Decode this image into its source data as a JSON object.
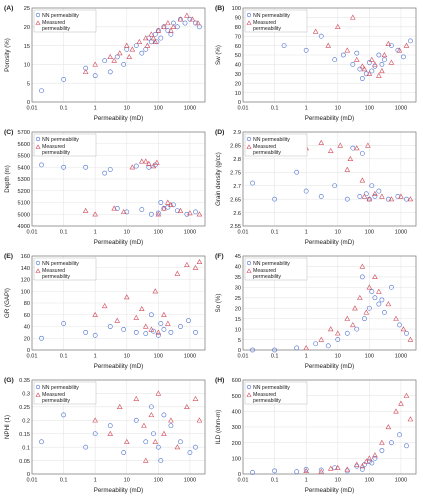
{
  "legend": {
    "nn": "NN permeability",
    "measured": "Measured permeability",
    "measured_line1": "Measured",
    "measured_line2": "permeability"
  },
  "colors": {
    "nn": "#4a6fd1",
    "measured": "#d24a5a",
    "axis": "#777777",
    "grid": "#e6e6e6",
    "text": "#222222"
  },
  "x_axis": {
    "label": "Permeability (mD)",
    "ticks": [
      "0.01",
      "0.1",
      "1",
      "10",
      "100",
      "1000"
    ],
    "tick_values": [
      0.01,
      0.1,
      1,
      10,
      100,
      1000
    ],
    "lim": [
      0.01,
      3000
    ],
    "scale": "log"
  },
  "chart_data": [
    {
      "panel": "(A)",
      "type": "scatter",
      "ylabel": "Porosity (%)",
      "ylim": [
        0,
        25
      ],
      "yticks": [
        0,
        5,
        10,
        15,
        20,
        25
      ],
      "legend_placement": "top-left",
      "grid": true,
      "series": [
        {
          "name": "NN permeability",
          "marker": "circle",
          "x": [
            0.02,
            0.1,
            0.5,
            2,
            5,
            10,
            20,
            30,
            50,
            60,
            80,
            100,
            120,
            150,
            200,
            300,
            400,
            500,
            700,
            1000,
            1500,
            2000,
            40,
            90,
            250,
            8,
            3,
            1
          ],
          "y": [
            3,
            6,
            9,
            11,
            12,
            14,
            15,
            13,
            17,
            16,
            18,
            19,
            17,
            20,
            19,
            21,
            20,
            22,
            21,
            22,
            21,
            20,
            14,
            16,
            18,
            10,
            8,
            7
          ]
        },
        {
          "name": "Measured permeability",
          "marker": "triangle",
          "x": [
            0.5,
            1,
            3,
            6,
            10,
            15,
            25,
            40,
            60,
            80,
            100,
            150,
            200,
            300,
            500,
            800,
            1200,
            1800,
            45,
            70,
            250,
            12,
            4
          ],
          "y": [
            8,
            10,
            12,
            13,
            15,
            14,
            16,
            17,
            18,
            16,
            19,
            20,
            21,
            20,
            22,
            23,
            22,
            21,
            15,
            17,
            19,
            12,
            11
          ]
        }
      ]
    },
    {
      "panel": "(B)",
      "type": "scatter",
      "ylabel": "Sw (%)",
      "ylim": [
        0,
        100
      ],
      "yticks": [
        0,
        10,
        20,
        30,
        40,
        50,
        60,
        70,
        80,
        90,
        100
      ],
      "legend_placement": "top-left",
      "grid": true,
      "series": [
        {
          "name": "NN permeability",
          "marker": "circle",
          "x": [
            0.02,
            0.2,
            1,
            3,
            8,
            15,
            30,
            50,
            80,
            100,
            150,
            200,
            300,
            500,
            800,
            1200,
            2000,
            60,
            120,
            40,
            250
          ],
          "y": [
            80,
            60,
            55,
            70,
            45,
            50,
            40,
            35,
            30,
            42,
            38,
            50,
            45,
            60,
            55,
            48,
            65,
            25,
            33,
            52,
            40
          ]
        },
        {
          "name": "Measured permeability",
          "marker": "triangle",
          "x": [
            2,
            5,
            10,
            20,
            40,
            70,
            100,
            150,
            200,
            300,
            500,
            900,
            1500,
            30,
            60,
            120,
            250,
            400
          ],
          "y": [
            75,
            60,
            80,
            55,
            45,
            35,
            30,
            40,
            28,
            50,
            42,
            55,
            60,
            90,
            38,
            45,
            33,
            62
          ]
        }
      ]
    },
    {
      "panel": "(C)",
      "type": "scatter",
      "ylabel": "Depth (m)",
      "ylim": [
        4900,
        5700
      ],
      "yticks": [
        4900,
        5000,
        5100,
        5200,
        5300,
        5400,
        5500,
        5600,
        5700
      ],
      "legend_placement": "top-left",
      "grid": true,
      "series": [
        {
          "name": "NN permeability",
          "marker": "circle",
          "x": [
            0.02,
            0.1,
            0.5,
            2,
            5,
            10,
            30,
            60,
            100,
            200,
            400,
            800,
            1500,
            50,
            80,
            120,
            3,
            20,
            150,
            300
          ],
          "y": [
            5420,
            5400,
            5400,
            5350,
            5050,
            5020,
            5040,
            5000,
            5010,
            5060,
            5030,
            5000,
            5020,
            5400,
            5420,
            5100,
            5380,
            5410,
            5050,
            5080
          ]
        },
        {
          "name": "Measured permeability",
          "marker": "triangle",
          "x": [
            0.5,
            1,
            4,
            8,
            15,
            30,
            50,
            70,
            100,
            150,
            250,
            500,
            1000,
            2000,
            40,
            90,
            200
          ],
          "y": [
            5030,
            5000,
            5050,
            5020,
            5400,
            5450,
            5430,
            5410,
            5000,
            5050,
            5080,
            5030,
            5010,
            5000,
            5450,
            5440,
            5100
          ]
        }
      ]
    },
    {
      "panel": "(D)",
      "type": "scatter",
      "ylabel": "Grain density (g/cc)",
      "ylim": [
        2.55,
        2.9
      ],
      "yticks": [
        2.55,
        2.6,
        2.65,
        2.7,
        2.75,
        2.8,
        2.85,
        2.9
      ],
      "legend_placement": "top-left",
      "grid": true,
      "series": [
        {
          "name": "NN permeability",
          "marker": "circle",
          "x": [
            0.02,
            0.1,
            0.5,
            1,
            3,
            8,
            20,
            50,
            80,
            100,
            150,
            200,
            400,
            800,
            1500,
            30,
            60,
            120
          ],
          "y": [
            2.71,
            2.65,
            2.75,
            2.68,
            2.66,
            2.7,
            2.65,
            2.66,
            2.67,
            2.65,
            2.66,
            2.68,
            2.65,
            2.66,
            2.65,
            2.84,
            2.82,
            2.7
          ]
        },
        {
          "name": "Measured permeability",
          "marker": "triangle",
          "x": [
            1,
            3,
            6,
            12,
            25,
            40,
            70,
            100,
            150,
            250,
            500,
            1000,
            2000,
            20,
            60,
            90
          ],
          "y": [
            2.84,
            2.86,
            2.83,
            2.85,
            2.8,
            2.84,
            2.66,
            2.65,
            2.67,
            2.66,
            2.65,
            2.66,
            2.65,
            2.76,
            2.72,
            2.85
          ]
        }
      ]
    },
    {
      "panel": "(E)",
      "type": "scatter",
      "ylabel": "GR (GAPI)",
      "ylim": [
        0,
        160
      ],
      "yticks": [
        0,
        20,
        40,
        60,
        80,
        100,
        120,
        140,
        160
      ],
      "legend_placement": "top-left",
      "grid": true,
      "series": [
        {
          "name": "NN permeability",
          "marker": "circle",
          "x": [
            0.02,
            0.1,
            0.5,
            1,
            3,
            8,
            20,
            40,
            70,
            100,
            150,
            250,
            500,
            900,
            1500,
            60,
            120
          ],
          "y": [
            20,
            45,
            30,
            25,
            40,
            35,
            30,
            28,
            32,
            25,
            35,
            30,
            40,
            50,
            30,
            60,
            45
          ]
        },
        {
          "name": "Measured permeability",
          "marker": "triangle",
          "x": [
            1,
            2,
            5,
            10,
            20,
            40,
            60,
            100,
            150,
            200,
            400,
            800,
            1500,
            2000,
            30,
            80
          ],
          "y": [
            60,
            75,
            50,
            90,
            55,
            40,
            35,
            30,
            60,
            45,
            130,
            145,
            140,
            150,
            70,
            100
          ]
        }
      ]
    },
    {
      "panel": "(F)",
      "type": "scatter",
      "ylabel": "So (%)",
      "ylim": [
        0,
        45
      ],
      "yticks": [
        0,
        5,
        10,
        15,
        20,
        25,
        30,
        35,
        40,
        45
      ],
      "legend_placement": "top-left",
      "grid": true,
      "series": [
        {
          "name": "NN permeability",
          "marker": "circle",
          "x": [
            0.02,
            0.1,
            0.5,
            2,
            5,
            10,
            20,
            40,
            70,
            100,
            150,
            200,
            300,
            500,
            900,
            1500,
            60,
            120,
            250
          ],
          "y": [
            0,
            0,
            1,
            3,
            2,
            5,
            8,
            10,
            15,
            20,
            25,
            22,
            18,
            30,
            12,
            8,
            35,
            28,
            24
          ]
        },
        {
          "name": "Measured permeability",
          "marker": "triangle",
          "x": [
            1,
            3,
            6,
            10,
            20,
            35,
            50,
            80,
            100,
            150,
            200,
            400,
            700,
            1200,
            2000,
            30,
            60
          ],
          "y": [
            1,
            5,
            10,
            8,
            15,
            20,
            25,
            18,
            30,
            35,
            28,
            22,
            15,
            10,
            5,
            12,
            40
          ]
        }
      ]
    },
    {
      "panel": "(G)",
      "type": "scatter",
      "ylabel": "NPHI (1)",
      "ylim": [
        0,
        0.35
      ],
      "yticks": [
        0,
        0.05,
        0.1,
        0.15,
        0.2,
        0.25,
        0.3,
        0.35
      ],
      "legend_placement": "top-left",
      "grid": true,
      "series": [
        {
          "name": "NN permeability",
          "marker": "circle",
          "x": [
            0.02,
            0.1,
            0.5,
            1,
            3,
            8,
            20,
            40,
            70,
            100,
            150,
            250,
            500,
            1000,
            1500,
            60,
            120
          ],
          "y": [
            0.12,
            0.22,
            0.1,
            0.15,
            0.18,
            0.08,
            0.2,
            0.12,
            0.15,
            0.1,
            0.22,
            0.18,
            0.12,
            0.08,
            0.1,
            0.25,
            0.05
          ]
        },
        {
          "name": "Measured permeability",
          "marker": "triangle",
          "x": [
            1,
            3,
            6,
            10,
            20,
            35,
            60,
            100,
            150,
            250,
            400,
            800,
            1500,
            2000,
            40,
            80
          ],
          "y": [
            0.2,
            0.15,
            0.25,
            0.12,
            0.28,
            0.18,
            0.22,
            0.3,
            0.15,
            0.2,
            0.1,
            0.25,
            0.28,
            0.2,
            0.05,
            0.12
          ]
        }
      ]
    },
    {
      "panel": "(H)",
      "type": "scatter",
      "ylabel": "ILD (ohm-m)",
      "ylim": [
        0,
        600
      ],
      "yticks": [
        0,
        100,
        200,
        300,
        400,
        500,
        600
      ],
      "legend_placement": "top-left",
      "grid": true,
      "series": [
        {
          "name": "NN permeability",
          "marker": "circle",
          "x": [
            0.02,
            0.1,
            0.5,
            1,
            3,
            8,
            20,
            40,
            70,
            100,
            150,
            250,
            500,
            900,
            1500,
            60,
            120
          ],
          "y": [
            10,
            20,
            15,
            30,
            25,
            40,
            20,
            50,
            60,
            80,
            100,
            150,
            200,
            250,
            180,
            30,
            70
          ]
        },
        {
          "name": "Measured permeability",
          "marker": "triangle",
          "x": [
            1,
            3,
            6,
            10,
            20,
            40,
            60,
            100,
            150,
            250,
            400,
            700,
            1000,
            1500,
            2000,
            80
          ],
          "y": [
            20,
            15,
            35,
            40,
            30,
            60,
            50,
            100,
            120,
            200,
            300,
            400,
            450,
            500,
            350,
            80
          ]
        }
      ]
    }
  ]
}
